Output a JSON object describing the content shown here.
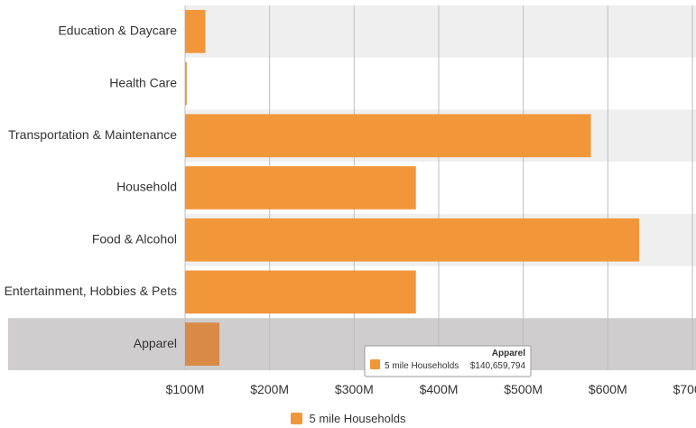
{
  "colors": {
    "bar": "#f2963a",
    "bar_highlight": "#d98a46",
    "band_light": "#efefef",
    "band_hover": "#cfcdce",
    "grid": "#bdbdbd",
    "axis_text": "#333333"
  },
  "chart_data": {
    "type": "bar",
    "orientation": "horizontal",
    "categories": [
      "Education & Daycare",
      "Health Care",
      "Transportation & Maintenance",
      "Household",
      "Food & Alcohol",
      "Entertainment, Hobbies & Pets",
      "Apparel"
    ],
    "series": [
      {
        "name": "5 mile Households",
        "values": [
          124000000,
          102000000,
          580000000,
          373000000,
          637000000,
          373000000,
          140659794
        ]
      }
    ],
    "xlim": [
      100000000,
      700000000
    ],
    "x_ticks": [
      {
        "value": 100000000,
        "label": "$100M"
      },
      {
        "value": 200000000,
        "label": "$200M"
      },
      {
        "value": 300000000,
        "label": "$300M"
      },
      {
        "value": 400000000,
        "label": "$400M"
      },
      {
        "value": 500000000,
        "label": "$500M"
      },
      {
        "value": 600000000,
        "label": "$600M"
      },
      {
        "value": 700000000,
        "label": "$700M"
      }
    ],
    "grid": true,
    "legend": {
      "position": "bottom-center",
      "label": "5 mile Households"
    },
    "highlighted_category": "Apparel",
    "tooltip": {
      "title": "Apparel",
      "series": "5 mile Households",
      "value": "$140,659,794"
    }
  }
}
